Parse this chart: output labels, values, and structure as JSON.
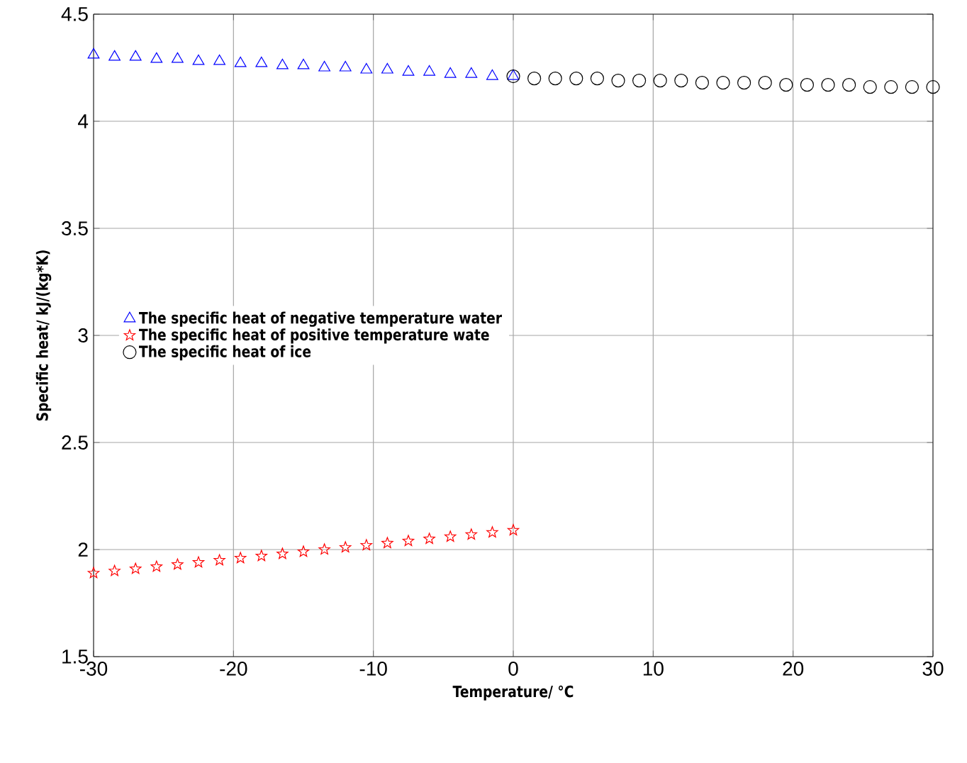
{
  "chart_data": {
    "type": "scatter",
    "xlabel": "Temperature/ °C",
    "ylabel": "Specific heat/ kJ/(kg*K)",
    "xlim": [
      -30,
      30
    ],
    "ylim": [
      1.5,
      4.5
    ],
    "xticks": [
      -30,
      -20,
      -10,
      0,
      10,
      20,
      30
    ],
    "yticks": [
      1.5,
      2,
      2.5,
      3,
      3.5,
      4,
      4.5
    ],
    "grid": true,
    "legend": "left",
    "series": [
      {
        "name": "The specific heat of negative  temperature water",
        "color": "#0000ff",
        "marker": "triangle",
        "x": [
          -30,
          -28.5,
          -27,
          -25.5,
          -24,
          -22.5,
          -21,
          -19.5,
          -18,
          -16.5,
          -15,
          -13.5,
          -12,
          -10.5,
          -9,
          -7.5,
          -6,
          -4.5,
          -3,
          -1.5,
          0
        ],
        "values": [
          4.31,
          4.3,
          4.3,
          4.29,
          4.29,
          4.28,
          4.28,
          4.27,
          4.27,
          4.26,
          4.26,
          4.25,
          4.25,
          4.24,
          4.24,
          4.23,
          4.23,
          4.22,
          4.22,
          4.21,
          4.21
        ]
      },
      {
        "name": "The specific heat of positive  temperature wate",
        "color": "#ff0000",
        "marker": "star",
        "x": [
          -30,
          -28.5,
          -27,
          -25.5,
          -24,
          -22.5,
          -21,
          -19.5,
          -18,
          -16.5,
          -15,
          -13.5,
          -12,
          -10.5,
          -9,
          -7.5,
          -6,
          -4.5,
          -3,
          -1.5,
          0
        ],
        "values": [
          1.89,
          1.9,
          1.91,
          1.92,
          1.93,
          1.94,
          1.95,
          1.96,
          1.97,
          1.98,
          1.99,
          2.0,
          2.01,
          2.02,
          2.03,
          2.04,
          2.05,
          2.06,
          2.07,
          2.08,
          2.09
        ]
      },
      {
        "name": "The specific heat of ice",
        "color": "#000000",
        "marker": "circle",
        "x": [
          0,
          1.5,
          3,
          4.5,
          6,
          7.5,
          9,
          10.5,
          12,
          13.5,
          15,
          16.5,
          18,
          19.5,
          21,
          22.5,
          24,
          25.5,
          27,
          28.5,
          30
        ],
        "values": [
          4.21,
          4.2,
          4.2,
          4.2,
          4.2,
          4.19,
          4.19,
          4.19,
          4.19,
          4.18,
          4.18,
          4.18,
          4.18,
          4.17,
          4.17,
          4.17,
          4.17,
          4.16,
          4.16,
          4.16,
          4.16
        ]
      }
    ]
  }
}
